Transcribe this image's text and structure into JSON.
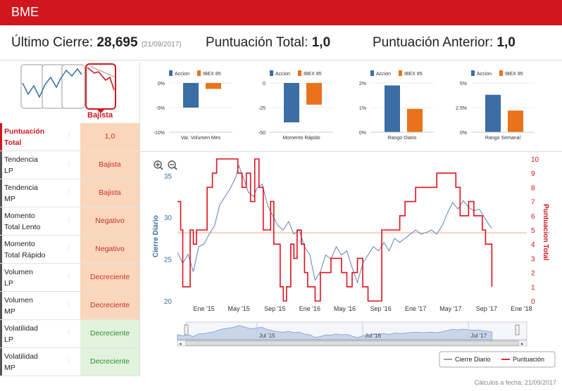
{
  "header": {
    "title": "BME"
  },
  "summary": {
    "last_close_label": "Último Cierre:",
    "last_close_value": "28,695",
    "last_close_date": "(21/09/2017)",
    "total_score_label": "Puntuación Total:",
    "total_score_value": "1,0",
    "prev_score_label": "Puntuación Anterior:",
    "prev_score_value": "1,0"
  },
  "trend_icon": {
    "label": "Bajista"
  },
  "table": {
    "rows": [
      {
        "label_line1": "Puntuación",
        "label_line2": "Total",
        "value": "1,0",
        "dots": "⋮"
      },
      {
        "label_line1": "Tendencia",
        "label_line2": "LP",
        "value": "Bajista",
        "dots": "⋮"
      },
      {
        "label_line1": "Tendencia",
        "label_line2": "MP",
        "value": "Bajista",
        "dots": "⋮"
      },
      {
        "label_line1": "Momento",
        "label_line2": "Total Lento",
        "value": "Negativo",
        "dots": "⋮"
      },
      {
        "label_line1": "Momento",
        "label_line2": "Total Rápido",
        "value": "Negativo",
        "dots": "⋮"
      },
      {
        "label_line1": "Volumen",
        "label_line2": "LP",
        "value": "Decreciente",
        "dots": "⋮"
      },
      {
        "label_line1": "Volumen",
        "label_line2": "MP",
        "value": "Decreciente",
        "dots": "⋮"
      },
      {
        "label_line1": "Volatilidad",
        "label_line2": "LP",
        "value": "Decreciente",
        "dots": "⋮"
      },
      {
        "label_line1": "Volatilidad",
        "label_line2": "MP",
        "value": "Decreciente",
        "dots": "⋮"
      }
    ]
  },
  "colors": {
    "brand_red": "#d0161f",
    "accion": "#3a6ea5",
    "ibex": "#e8731a",
    "price_line": "#5e82b4",
    "score_line": "#e0101c",
    "ref_line": "#f2b38f"
  },
  "chart_data": [
    {
      "type": "bar",
      "title": "Var. Volumen Mes",
      "legend": [
        "Accion",
        "IBEX 85"
      ],
      "categories": [
        "Accion",
        "IBEX 85"
      ],
      "values": [
        -5.0,
        -1.2
      ],
      "yticks": [
        "0%",
        "-5%",
        "-10%"
      ],
      "ylim": [
        -10,
        0
      ]
    },
    {
      "type": "bar",
      "title": "Momento Rápido",
      "legend": [
        "Accion",
        "IBEX 85"
      ],
      "categories": [
        "Accion",
        "IBEX 85"
      ],
      "values": [
        -40,
        -22
      ],
      "yticks": [
        "0",
        "-25",
        "-50"
      ],
      "ylim": [
        -50,
        0
      ]
    },
    {
      "type": "bar",
      "title": "Rango Diario",
      "legend": [
        "Accion",
        "IBEX 85"
      ],
      "categories": [
        "Accion",
        "IBEX 85"
      ],
      "values": [
        1.9,
        0.95
      ],
      "yticks": [
        "2%",
        "1%",
        "0%"
      ],
      "ylim": [
        0,
        2
      ]
    },
    {
      "type": "bar",
      "title": "Rango Semanal",
      "legend": [
        "Accion",
        "IBEX 85"
      ],
      "categories": [
        "Accion",
        "IBEX 85"
      ],
      "values": [
        3.8,
        2.2
      ],
      "yticks": [
        "5%",
        "2.5%",
        "0%"
      ],
      "ylim": [
        0,
        5
      ]
    },
    {
      "type": "line",
      "ylabel_left": "Cierre Diario",
      "ylabel_right": "Puntuacion Total",
      "yticks_left": [
        "35",
        "30",
        "25",
        "20"
      ],
      "yticks_right": [
        "10",
        "9",
        "8",
        "7",
        "6",
        "5",
        "4",
        "3",
        "2",
        "1",
        "0"
      ],
      "ylim_left": [
        20,
        37
      ],
      "ylim_right": [
        0,
        10
      ],
      "xlim": [
        2014.75,
        2018.05
      ],
      "xticks": [
        {
          "label": "Ene '15",
          "x": 2015.0
        },
        {
          "label": "May '15",
          "x": 2015.33
        },
        {
          "label": "Sep '15",
          "x": 2015.67
        },
        {
          "label": "Ene '16",
          "x": 2016.0
        },
        {
          "label": "May '16",
          "x": 2016.33
        },
        {
          "label": "Sep '16",
          "x": 2016.67
        },
        {
          "label": "Ene '17",
          "x": 2017.0
        },
        {
          "label": "May '17",
          "x": 2017.33
        },
        {
          "label": "Sep '17",
          "x": 2017.67
        },
        {
          "label": "Ene '18",
          "x": 2018.0
        }
      ],
      "reference_score": 4.8,
      "navigator_labels": [
        "Jul '15",
        "Jul '16",
        "Jul '17"
      ],
      "legend": [
        "Cierre Diario",
        "Puntuación"
      ],
      "series": [
        {
          "name": "Cierre Diario",
          "points": [
            [
              2014.75,
              25.8
            ],
            [
              2014.8,
              24.5
            ],
            [
              2014.85,
              25.6
            ],
            [
              2014.9,
              23.5
            ],
            [
              2014.95,
              26.5
            ],
            [
              2015.0,
              26.8
            ],
            [
              2015.05,
              28.0
            ],
            [
              2015.1,
              29.0
            ],
            [
              2015.15,
              31.5
            ],
            [
              2015.2,
              32.5
            ],
            [
              2015.25,
              33.5
            ],
            [
              2015.3,
              34.8
            ],
            [
              2015.33,
              36.2
            ],
            [
              2015.38,
              34.5
            ],
            [
              2015.42,
              33.0
            ],
            [
              2015.47,
              32.5
            ],
            [
              2015.5,
              33.5
            ],
            [
              2015.55,
              34.0
            ],
            [
              2015.6,
              31.5
            ],
            [
              2015.65,
              30.2
            ],
            [
              2015.7,
              29.0
            ],
            [
              2015.75,
              28.5
            ],
            [
              2015.8,
              29.5
            ],
            [
              2015.85,
              28.0
            ],
            [
              2015.9,
              28.5
            ],
            [
              2015.95,
              26.5
            ],
            [
              2016.0,
              25.5
            ],
            [
              2016.05,
              22.5
            ],
            [
              2016.1,
              23.5
            ],
            [
              2016.15,
              25.5
            ],
            [
              2016.2,
              25.0
            ],
            [
              2016.25,
              26.5
            ],
            [
              2016.3,
              25.5
            ],
            [
              2016.35,
              26.0
            ],
            [
              2016.4,
              24.0
            ],
            [
              2016.45,
              22.2
            ],
            [
              2016.5,
              24.5
            ],
            [
              2016.55,
              25.5
            ],
            [
              2016.6,
              26.5
            ],
            [
              2016.65,
              26.0
            ],
            [
              2016.7,
              27.0
            ],
            [
              2016.75,
              26.0
            ],
            [
              2016.8,
              27.5
            ],
            [
              2016.85,
              27.0
            ],
            [
              2016.9,
              27.5
            ],
            [
              2016.95,
              28.0
            ],
            [
              2017.0,
              28.5
            ],
            [
              2017.05,
              28.0
            ],
            [
              2017.1,
              28.2
            ],
            [
              2017.15,
              28.5
            ],
            [
              2017.2,
              28.0
            ],
            [
              2017.25,
              29.0
            ],
            [
              2017.3,
              30.5
            ],
            [
              2017.35,
              31.8
            ],
            [
              2017.4,
              31.0
            ],
            [
              2017.45,
              32.0
            ],
            [
              2017.5,
              31.2
            ],
            [
              2017.55,
              30.8
            ],
            [
              2017.6,
              31.0
            ],
            [
              2017.65,
              30.0
            ],
            [
              2017.7,
              29.0
            ],
            [
              2017.72,
              28.7
            ]
          ]
        },
        {
          "name": "Puntuación",
          "points": [
            [
              2014.75,
              7
            ],
            [
              2014.78,
              5
            ],
            [
              2014.8,
              1
            ],
            [
              2014.85,
              1
            ],
            [
              2014.87,
              5
            ],
            [
              2014.9,
              4
            ],
            [
              2014.93,
              5
            ],
            [
              2015.0,
              5
            ],
            [
              2015.03,
              8
            ],
            [
              2015.08,
              9
            ],
            [
              2015.12,
              10
            ],
            [
              2015.3,
              10
            ],
            [
              2015.32,
              9
            ],
            [
              2015.36,
              8
            ],
            [
              2015.4,
              9
            ],
            [
              2015.44,
              7
            ],
            [
              2015.48,
              10
            ],
            [
              2015.52,
              8
            ],
            [
              2015.56,
              5
            ],
            [
              2015.6,
              5
            ],
            [
              2015.63,
              7
            ],
            [
              2015.66,
              4
            ],
            [
              2015.7,
              4
            ],
            [
              2015.72,
              1
            ],
            [
              2015.75,
              0
            ],
            [
              2015.78,
              1
            ],
            [
              2015.82,
              4
            ],
            [
              2015.85,
              3
            ],
            [
              2015.88,
              5
            ],
            [
              2015.92,
              4
            ],
            [
              2015.95,
              2
            ],
            [
              2015.98,
              1
            ],
            [
              2016.02,
              1
            ],
            [
              2016.05,
              0
            ],
            [
              2016.1,
              2
            ],
            [
              2016.15,
              2
            ],
            [
              2016.2,
              3
            ],
            [
              2016.25,
              3
            ],
            [
              2016.3,
              2
            ],
            [
              2016.35,
              1
            ],
            [
              2016.4,
              2
            ],
            [
              2016.45,
              3
            ],
            [
              2016.5,
              1
            ],
            [
              2016.55,
              0
            ],
            [
              2016.6,
              0
            ],
            [
              2016.65,
              0
            ],
            [
              2016.68,
              5
            ],
            [
              2016.72,
              5
            ],
            [
              2016.75,
              5
            ],
            [
              2016.8,
              5
            ],
            [
              2016.85,
              6
            ],
            [
              2016.9,
              7
            ],
            [
              2016.95,
              7
            ],
            [
              2017.0,
              8
            ],
            [
              2017.1,
              8
            ],
            [
              2017.15,
              8
            ],
            [
              2017.2,
              9
            ],
            [
              2017.25,
              9
            ],
            [
              2017.3,
              9
            ],
            [
              2017.35,
              9
            ],
            [
              2017.38,
              8
            ],
            [
              2017.42,
              6
            ],
            [
              2017.45,
              6
            ],
            [
              2017.5,
              7
            ],
            [
              2017.55,
              6
            ],
            [
              2017.6,
              6
            ],
            [
              2017.63,
              5
            ],
            [
              2017.66,
              4
            ],
            [
              2017.7,
              4
            ],
            [
              2017.72,
              1
            ]
          ]
        }
      ]
    }
  ]
}
